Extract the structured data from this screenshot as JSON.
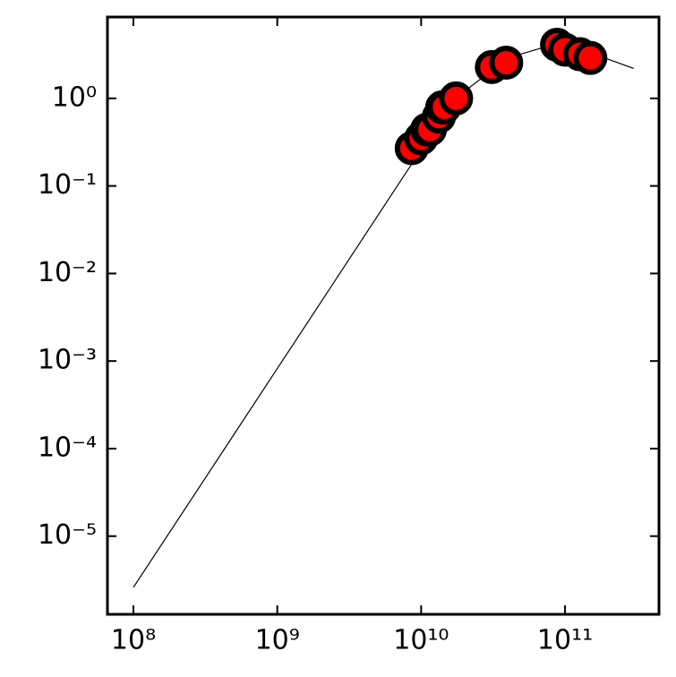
{
  "chart_data": {
    "type": "scatter",
    "x": [
      8600000000.0,
      10000000000.0,
      11000000000.0,
      11500000000.0,
      13300000000.0,
      14000000000.0,
      14500000000.0,
      17500000000.0,
      31000000000.0,
      39000000000.0,
      88000000000.0,
      100000000000.0,
      127000000000.0,
      150000000000.0
    ],
    "values": [
      0.27,
      0.35,
      0.44,
      0.44,
      0.62,
      0.79,
      0.79,
      1.0,
      2.28,
      2.56,
      4.1,
      3.6,
      3.2,
      2.9
    ],
    "color": "#ff0000",
    "edgecolor": "#000000",
    "line": {
      "x": [
        100000000.0,
        1000000000.0,
        10000000000.0,
        20000000000.0,
        40000000000.0,
        70000000000.0,
        100000000000.0,
        200000000000.0,
        300000000000.0
      ],
      "values": [
        2.6e-06,
        0.00082,
        0.26,
        1.2,
        2.9,
        3.8,
        3.6,
        2.8,
        2.2
      ],
      "color": "#000000"
    },
    "xscale": "log",
    "yscale": "log",
    "xlim": [
      66000000.0,
      450000000000.0
    ],
    "ylim": [
      1.28e-06,
      8.5
    ],
    "xticks": [
      {
        "value": 100000000.0,
        "label": "10⁸"
      },
      {
        "value": 1000000000.0,
        "label": "10⁹"
      },
      {
        "value": 10000000000.0,
        "label": "10¹⁰"
      },
      {
        "value": 100000000000.0,
        "label": "10¹¹"
      }
    ],
    "yticks": [
      {
        "value": 1e-05,
        "label": "10⁻⁵"
      },
      {
        "value": 0.0001,
        "label": "10⁻⁴"
      },
      {
        "value": 0.001,
        "label": "10⁻³"
      },
      {
        "value": 0.01,
        "label": "10⁻²"
      },
      {
        "value": 0.1,
        "label": "10⁻¹"
      },
      {
        "value": 1,
        "label": "10⁰"
      }
    ]
  }
}
